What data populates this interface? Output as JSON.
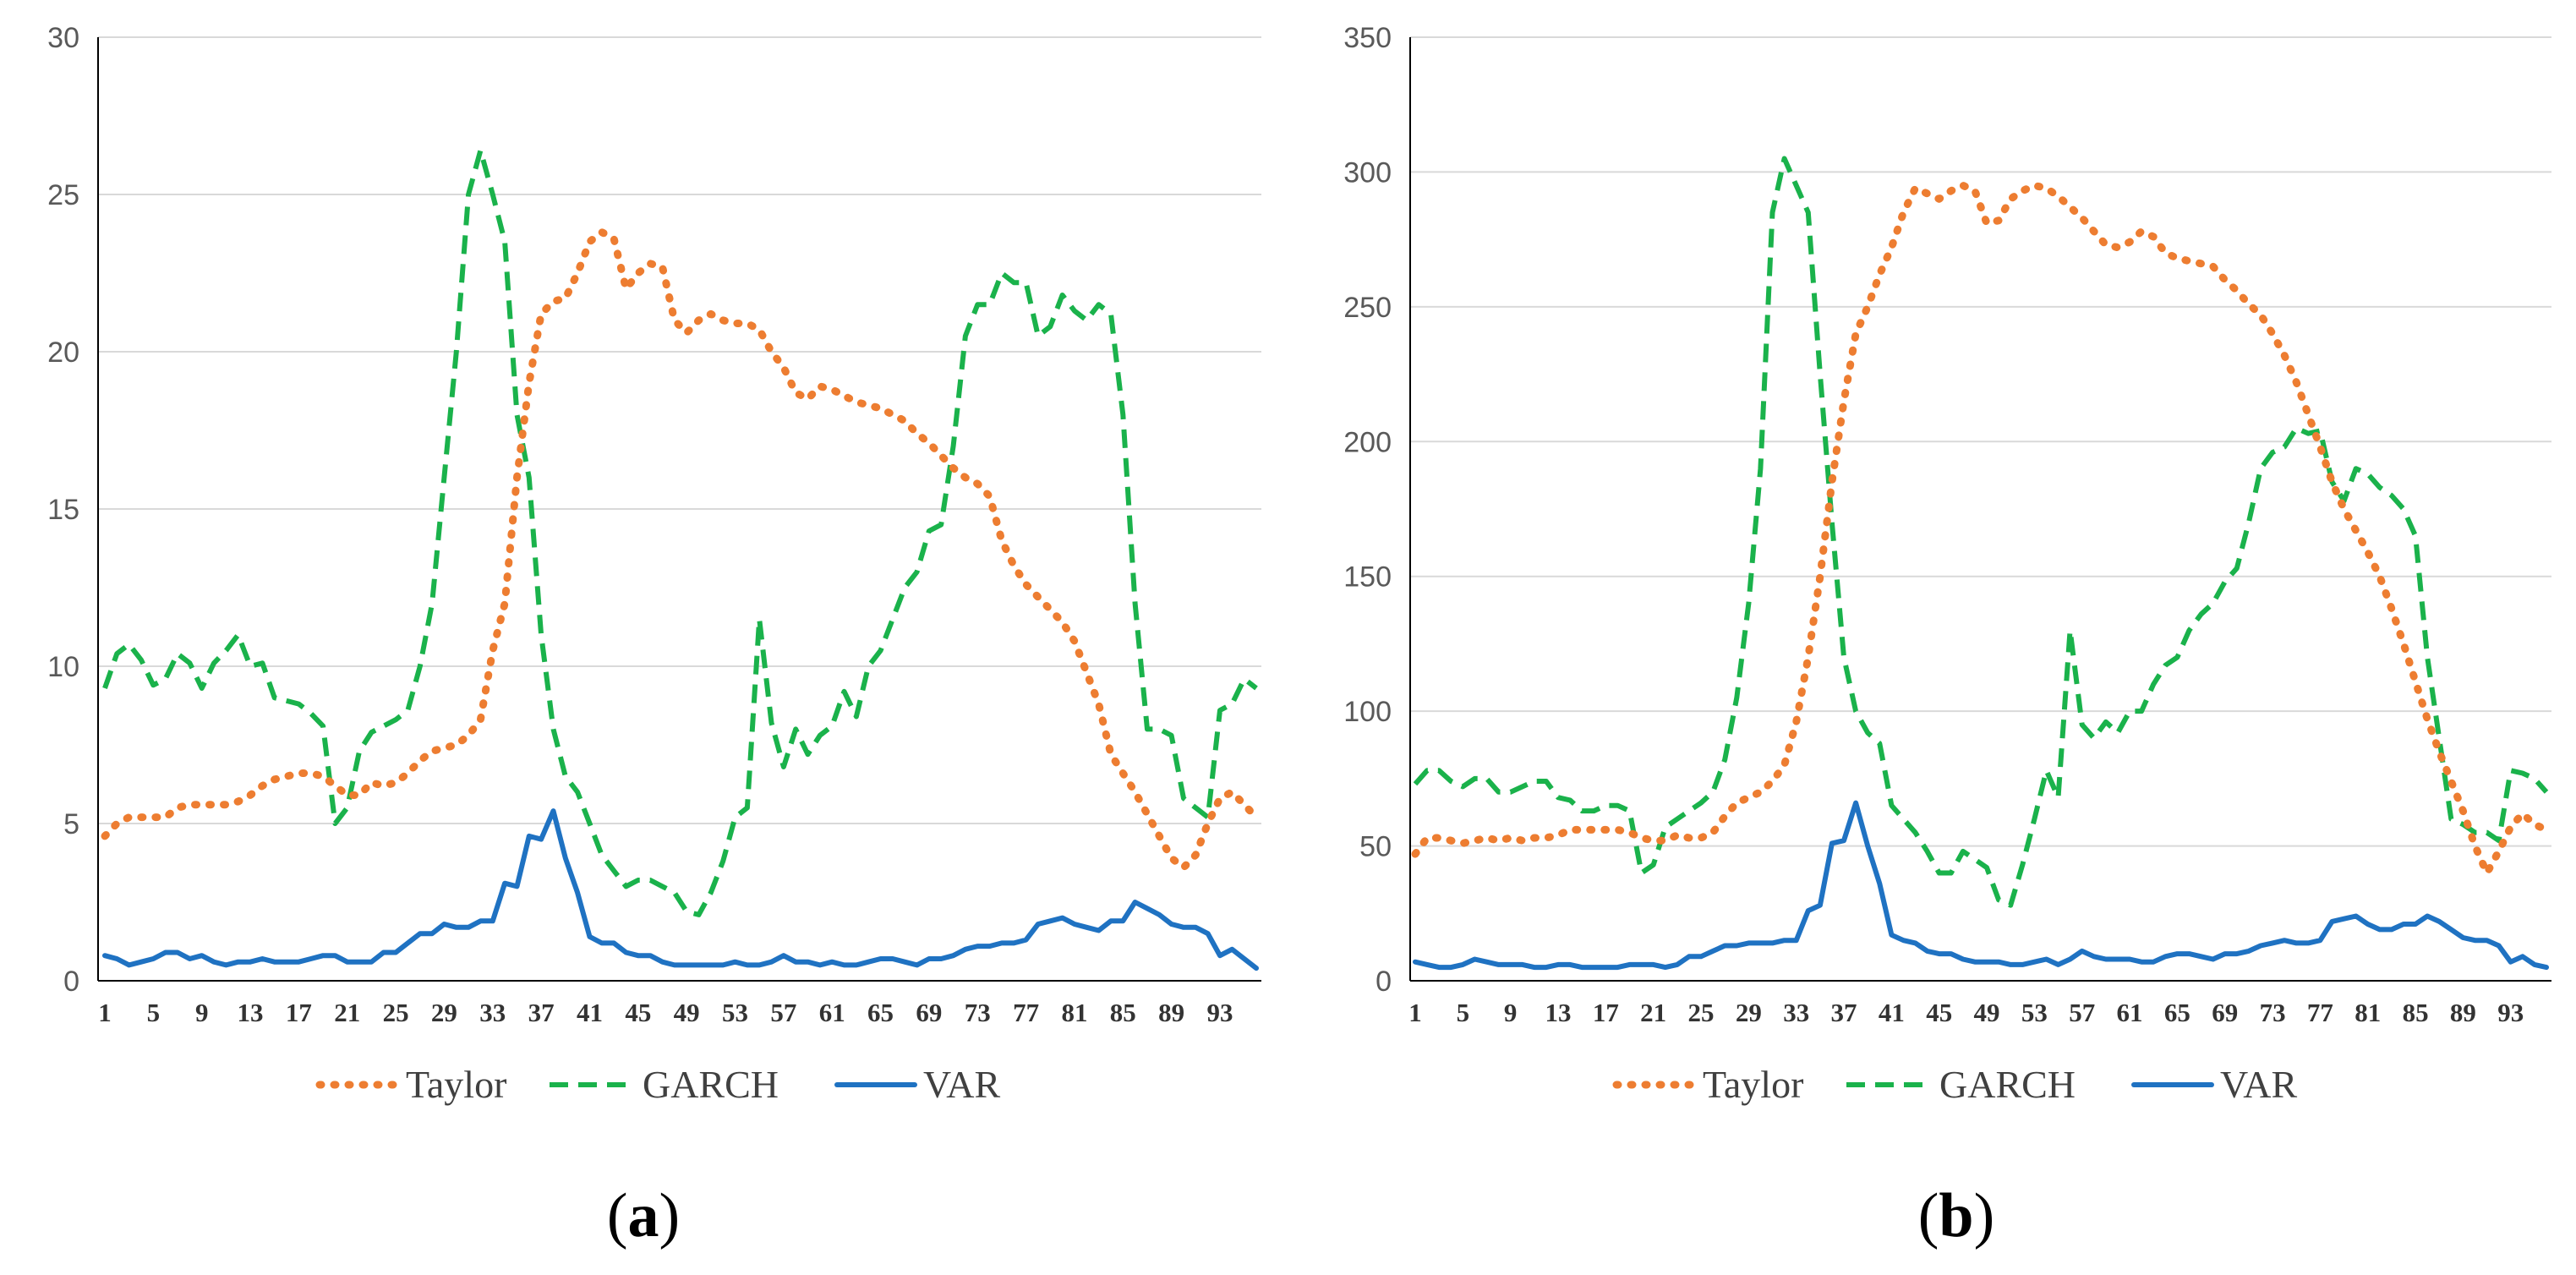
{
  "colors": {
    "Taylor": "#ed7d31",
    "GARCH": "#1ab24b",
    "VAR": "#1f72c2",
    "grid": "#d9d9d9",
    "axis": "#000000"
  },
  "chart_data": [
    {
      "type": "line",
      "panel_label": "a",
      "x": [
        1,
        2,
        3,
        4,
        5,
        6,
        7,
        8,
        9,
        10,
        11,
        12,
        13,
        14,
        15,
        16,
        17,
        18,
        19,
        20,
        21,
        22,
        23,
        24,
        25,
        26,
        27,
        28,
        29,
        30,
        31,
        32,
        33,
        34,
        35,
        36,
        37,
        38,
        39,
        40,
        41,
        42,
        43,
        44,
        45,
        46,
        47,
        48,
        49,
        50,
        51,
        52,
        53,
        54,
        55,
        56,
        57,
        58,
        59,
        60,
        61,
        62,
        63,
        64,
        65,
        66,
        67,
        68,
        69,
        70,
        71,
        72,
        73,
        74,
        75,
        76,
        77,
        78,
        79,
        80,
        81,
        82,
        83,
        84,
        85,
        86,
        87,
        88,
        89,
        90,
        91,
        92,
        93,
        94,
        95,
        96
      ],
      "x_tick_labels": [
        "1",
        "5",
        "9",
        "13",
        "17",
        "21",
        "25",
        "29",
        "33",
        "37",
        "41",
        "45",
        "49",
        "53",
        "57",
        "61",
        "65",
        "69",
        "73",
        "77",
        "81",
        "85",
        "89",
        "93"
      ],
      "ylim": [
        0,
        30
      ],
      "y_ticks": [
        0,
        5,
        10,
        15,
        20,
        25,
        30
      ],
      "y_tick_labels": [
        "0",
        "5",
        "10",
        "15",
        "20",
        "25",
        "30"
      ],
      "grid": true,
      "legend_position": "bottom",
      "series": [
        {
          "name": "Taylor",
          "style": "dotted",
          "values": [
            4.6,
            5.0,
            5.2,
            5.2,
            5.2,
            5.2,
            5.5,
            5.6,
            5.6,
            5.6,
            5.6,
            5.7,
            5.9,
            6.2,
            6.4,
            6.5,
            6.6,
            6.6,
            6.5,
            6.2,
            5.9,
            5.9,
            6.3,
            6.2,
            6.3,
            6.6,
            7.0,
            7.3,
            7.4,
            7.5,
            7.8,
            8.3,
            10.5,
            12.0,
            16.0,
            19.0,
            21.2,
            21.6,
            21.7,
            22.5,
            23.5,
            23.8,
            23.6,
            22.0,
            22.5,
            22.8,
            22.7,
            21.0,
            20.6,
            21.0,
            21.2,
            21.0,
            20.9,
            20.9,
            20.7,
            20.0,
            19.5,
            18.7,
            18.5,
            18.9,
            18.8,
            18.6,
            18.4,
            18.3,
            18.2,
            18.0,
            17.8,
            17.4,
            17.1,
            16.7,
            16.3,
            16.0,
            15.8,
            15.4,
            14.0,
            13.2,
            12.6,
            12.2,
            11.8,
            11.4,
            10.8,
            9.8,
            8.8,
            7.2,
            6.6,
            6.0,
            5.3,
            4.6,
            3.9,
            3.6,
            4.0,
            5.0,
            5.8,
            6.0,
            5.6,
            5.2
          ]
        },
        {
          "name": "GARCH",
          "style": "dashed",
          "values": [
            9.3,
            10.4,
            10.7,
            10.2,
            9.4,
            9.6,
            10.4,
            10.1,
            9.3,
            10.1,
            10.5,
            11.0,
            10.0,
            10.1,
            9.0,
            8.9,
            8.8,
            8.5,
            8.1,
            5.0,
            5.5,
            7.3,
            7.9,
            8.1,
            8.3,
            8.6,
            10.0,
            12.0,
            16.0,
            20.0,
            25.0,
            26.4,
            25.0,
            23.5,
            18.0,
            16.0,
            11.0,
            8.0,
            6.5,
            6.0,
            5.0,
            4.0,
            3.5,
            3.0,
            3.2,
            3.2,
            3.0,
            2.8,
            2.2,
            2.1,
            2.8,
            3.8,
            5.2,
            5.5,
            11.5,
            8.2,
            6.8,
            8.0,
            7.2,
            7.8,
            8.1,
            9.2,
            8.4,
            10.0,
            10.5,
            11.5,
            12.5,
            13.0,
            14.3,
            14.5,
            17.0,
            20.5,
            21.5,
            21.5,
            22.5,
            22.2,
            22.2,
            20.5,
            20.8,
            21.8,
            21.3,
            21.0,
            21.5,
            21.2,
            18.0,
            12.0,
            8.0,
            8.0,
            7.8,
            5.8,
            5.5,
            5.2,
            8.6,
            8.8,
            9.6,
            9.3
          ]
        },
        {
          "name": "VAR",
          "style": "solid",
          "values": [
            0.8,
            0.7,
            0.5,
            0.6,
            0.7,
            0.9,
            0.9,
            0.7,
            0.8,
            0.6,
            0.5,
            0.6,
            0.6,
            0.7,
            0.6,
            0.6,
            0.6,
            0.7,
            0.8,
            0.8,
            0.6,
            0.6,
            0.6,
            0.9,
            0.9,
            1.2,
            1.5,
            1.5,
            1.8,
            1.7,
            1.7,
            1.9,
            1.9,
            3.1,
            3.0,
            4.6,
            4.5,
            5.4,
            3.9,
            2.8,
            1.4,
            1.2,
            1.2,
            0.9,
            0.8,
            0.8,
            0.6,
            0.5,
            0.5,
            0.5,
            0.5,
            0.5,
            0.6,
            0.5,
            0.5,
            0.6,
            0.8,
            0.6,
            0.6,
            0.5,
            0.6,
            0.5,
            0.5,
            0.6,
            0.7,
            0.7,
            0.6,
            0.5,
            0.7,
            0.7,
            0.8,
            1.0,
            1.1,
            1.1,
            1.2,
            1.2,
            1.3,
            1.8,
            1.9,
            2.0,
            1.8,
            1.7,
            1.6,
            1.9,
            1.9,
            2.5,
            2.3,
            2.1,
            1.8,
            1.7,
            1.7,
            1.5,
            0.8,
            1.0,
            0.7,
            0.4
          ]
        }
      ]
    },
    {
      "type": "line",
      "panel_label": "b",
      "x": [
        1,
        2,
        3,
        4,
        5,
        6,
        7,
        8,
        9,
        10,
        11,
        12,
        13,
        14,
        15,
        16,
        17,
        18,
        19,
        20,
        21,
        22,
        23,
        24,
        25,
        26,
        27,
        28,
        29,
        30,
        31,
        32,
        33,
        34,
        35,
        36,
        37,
        38,
        39,
        40,
        41,
        42,
        43,
        44,
        45,
        46,
        47,
        48,
        49,
        50,
        51,
        52,
        53,
        54,
        55,
        56,
        57,
        58,
        59,
        60,
        61,
        62,
        63,
        64,
        65,
        66,
        67,
        68,
        69,
        70,
        71,
        72,
        73,
        74,
        75,
        76,
        77,
        78,
        79,
        80,
        81,
        82,
        83,
        84,
        85,
        86,
        87,
        88,
        89,
        90,
        91,
        92,
        93,
        94,
        95,
        96
      ],
      "x_tick_labels": [
        "1",
        "5",
        "9",
        "13",
        "17",
        "21",
        "25",
        "29",
        "33",
        "37",
        "41",
        "45",
        "49",
        "53",
        "57",
        "61",
        "65",
        "69",
        "73",
        "77",
        "81",
        "85",
        "89",
        "93"
      ],
      "ylim": [
        0,
        350
      ],
      "y_ticks": [
        0,
        50,
        100,
        150,
        200,
        250,
        300,
        350
      ],
      "y_tick_labels": [
        "0",
        "50",
        "100",
        "150",
        "200",
        "250",
        "300",
        "350"
      ],
      "grid": true,
      "legend_position": "bottom",
      "series": [
        {
          "name": "Taylor",
          "style": "dotted",
          "values": [
            47,
            53,
            53,
            52,
            51,
            52,
            53,
            52,
            53,
            52,
            53,
            53,
            54,
            56,
            56,
            56,
            56,
            56,
            55,
            53,
            52,
            52,
            54,
            53,
            53,
            55,
            61,
            66,
            68,
            70,
            74,
            80,
            96,
            120,
            150,
            185,
            215,
            240,
            250,
            262,
            272,
            285,
            294,
            292,
            290,
            293,
            295,
            293,
            281,
            282,
            290,
            293,
            295,
            294,
            291,
            287,
            283,
            278,
            273,
            272,
            274,
            278,
            276,
            270,
            268,
            267,
            266,
            265,
            260,
            256,
            251,
            247,
            240,
            232,
            222,
            210,
            198,
            185,
            175,
            167,
            159,
            150,
            138,
            125,
            111,
            97,
            85,
            74,
            63,
            50,
            40,
            48,
            57,
            62,
            58,
            56
          ]
        },
        {
          "name": "GARCH",
          "style": "dashed",
          "values": [
            73,
            78,
            78,
            74,
            72,
            75,
            75,
            70,
            70,
            72,
            74,
            74,
            68,
            67,
            63,
            63,
            65,
            65,
            63,
            40,
            43,
            57,
            60,
            63,
            66,
            70,
            82,
            105,
            140,
            190,
            285,
            305,
            295,
            285,
            225,
            170,
            120,
            100,
            92,
            88,
            65,
            60,
            55,
            48,
            40,
            40,
            48,
            45,
            42,
            30,
            28,
            43,
            60,
            78,
            68,
            130,
            95,
            90,
            96,
            92,
            100,
            100,
            110,
            117,
            120,
            130,
            136,
            140,
            148,
            153,
            170,
            190,
            196,
            198,
            205,
            203,
            204,
            185,
            178,
            190,
            188,
            183,
            180,
            175,
            165,
            120,
            90,
            60,
            58,
            55,
            55,
            52,
            78,
            77,
            75,
            70
          ]
        },
        {
          "name": "VAR",
          "style": "solid",
          "values": [
            7,
            6,
            5,
            5,
            6,
            8,
            7,
            6,
            6,
            6,
            5,
            5,
            6,
            6,
            5,
            5,
            5,
            5,
            6,
            6,
            6,
            5,
            6,
            9,
            9,
            11,
            13,
            13,
            14,
            14,
            14,
            15,
            15,
            26,
            28,
            51,
            52,
            66,
            50,
            36,
            17,
            15,
            14,
            11,
            10,
            10,
            8,
            7,
            7,
            7,
            6,
            6,
            7,
            8,
            6,
            8,
            11,
            9,
            8,
            8,
            8,
            7,
            7,
            9,
            10,
            10,
            9,
            8,
            10,
            10,
            11,
            13,
            14,
            15,
            14,
            14,
            15,
            22,
            23,
            24,
            21,
            19,
            19,
            21,
            21,
            24,
            22,
            19,
            16,
            15,
            15,
            13,
            7,
            9,
            6,
            5
          ]
        }
      ]
    }
  ]
}
